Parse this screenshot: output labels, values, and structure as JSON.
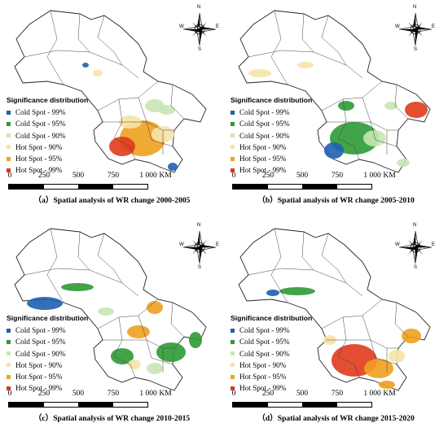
{
  "legend": {
    "title": "Significance distribution",
    "items": [
      {
        "label": "Cold Spot - 99%",
        "color": "#1f5fb0"
      },
      {
        "label": "Cold Spot - 95%",
        "color": "#2e9a35"
      },
      {
        "label": "Cold Spot - 90%",
        "color": "#c9e6b5"
      },
      {
        "label": "Hot Spot - 90%",
        "color": "#f6e3a8"
      },
      {
        "label": "Hot Spot - 95%",
        "color": "#f0a020"
      },
      {
        "label": "Hot Spot - 99%",
        "color": "#e03a1c"
      }
    ]
  },
  "scale": {
    "ticks": [
      "0",
      "250",
      "500",
      "750",
      "1 000"
    ],
    "unit": "KM"
  },
  "compass": {
    "n": "N",
    "s": "S",
    "e": "E",
    "w": "W"
  },
  "panels": [
    {
      "caption": "（a）Spatial analysis of WR change 2000-2005"
    },
    {
      "caption": "（b）Spatial analysis of WR change 2005-2010"
    },
    {
      "caption": "（c）Spatial analysis of WR change 2010-2015"
    },
    {
      "caption": "（d）Spatial analysis of WR change 2015-2020"
    }
  ]
}
